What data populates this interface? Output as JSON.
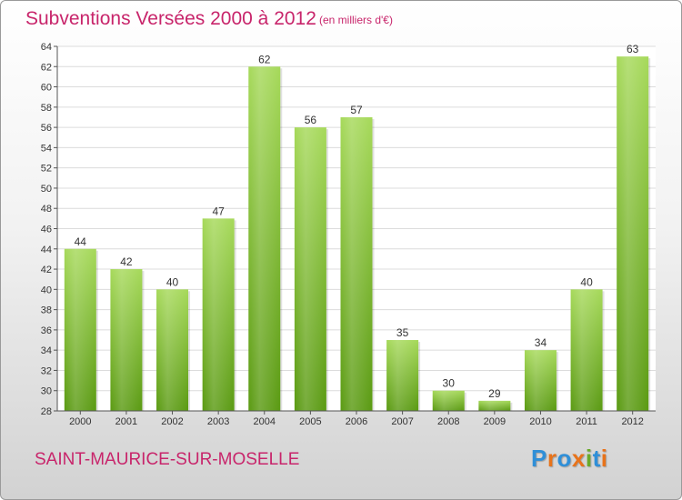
{
  "header": {
    "title": "Subventions Versées 2000 à 2012",
    "subtitle": "(en milliers d'€)"
  },
  "footer": {
    "commune": "SAINT-MAURICE-SUR-MOSELLE",
    "brand": "Proxiti"
  },
  "colors": {
    "accent": "#c8256b",
    "bar_light": "#a6d95a",
    "bar_dark": "#5a9a12",
    "grid": "#d9d9d9",
    "logo": [
      "#2f8fd8",
      "#e8731a",
      "#2f8fd8",
      "#e8731a",
      "#6aaa2a",
      "#2f8fd8",
      "#e8731a"
    ]
  },
  "chart_data": {
    "type": "bar",
    "title": "Subventions Versées 2000 à 2012",
    "subtitle": "(en milliers d'€)",
    "categories": [
      "2000",
      "2001",
      "2002",
      "2003",
      "2004",
      "2005",
      "2006",
      "2007",
      "2008",
      "2009",
      "2010",
      "2011",
      "2012"
    ],
    "values": [
      44,
      42,
      40,
      47,
      62,
      56,
      57,
      35,
      30,
      29,
      34,
      40,
      63
    ],
    "ylim": [
      28,
      64
    ],
    "yticks": [
      28,
      30,
      32,
      34,
      36,
      38,
      40,
      42,
      44,
      46,
      48,
      50,
      52,
      54,
      56,
      58,
      60,
      62,
      64
    ],
    "grid": true,
    "data_labels": true
  }
}
